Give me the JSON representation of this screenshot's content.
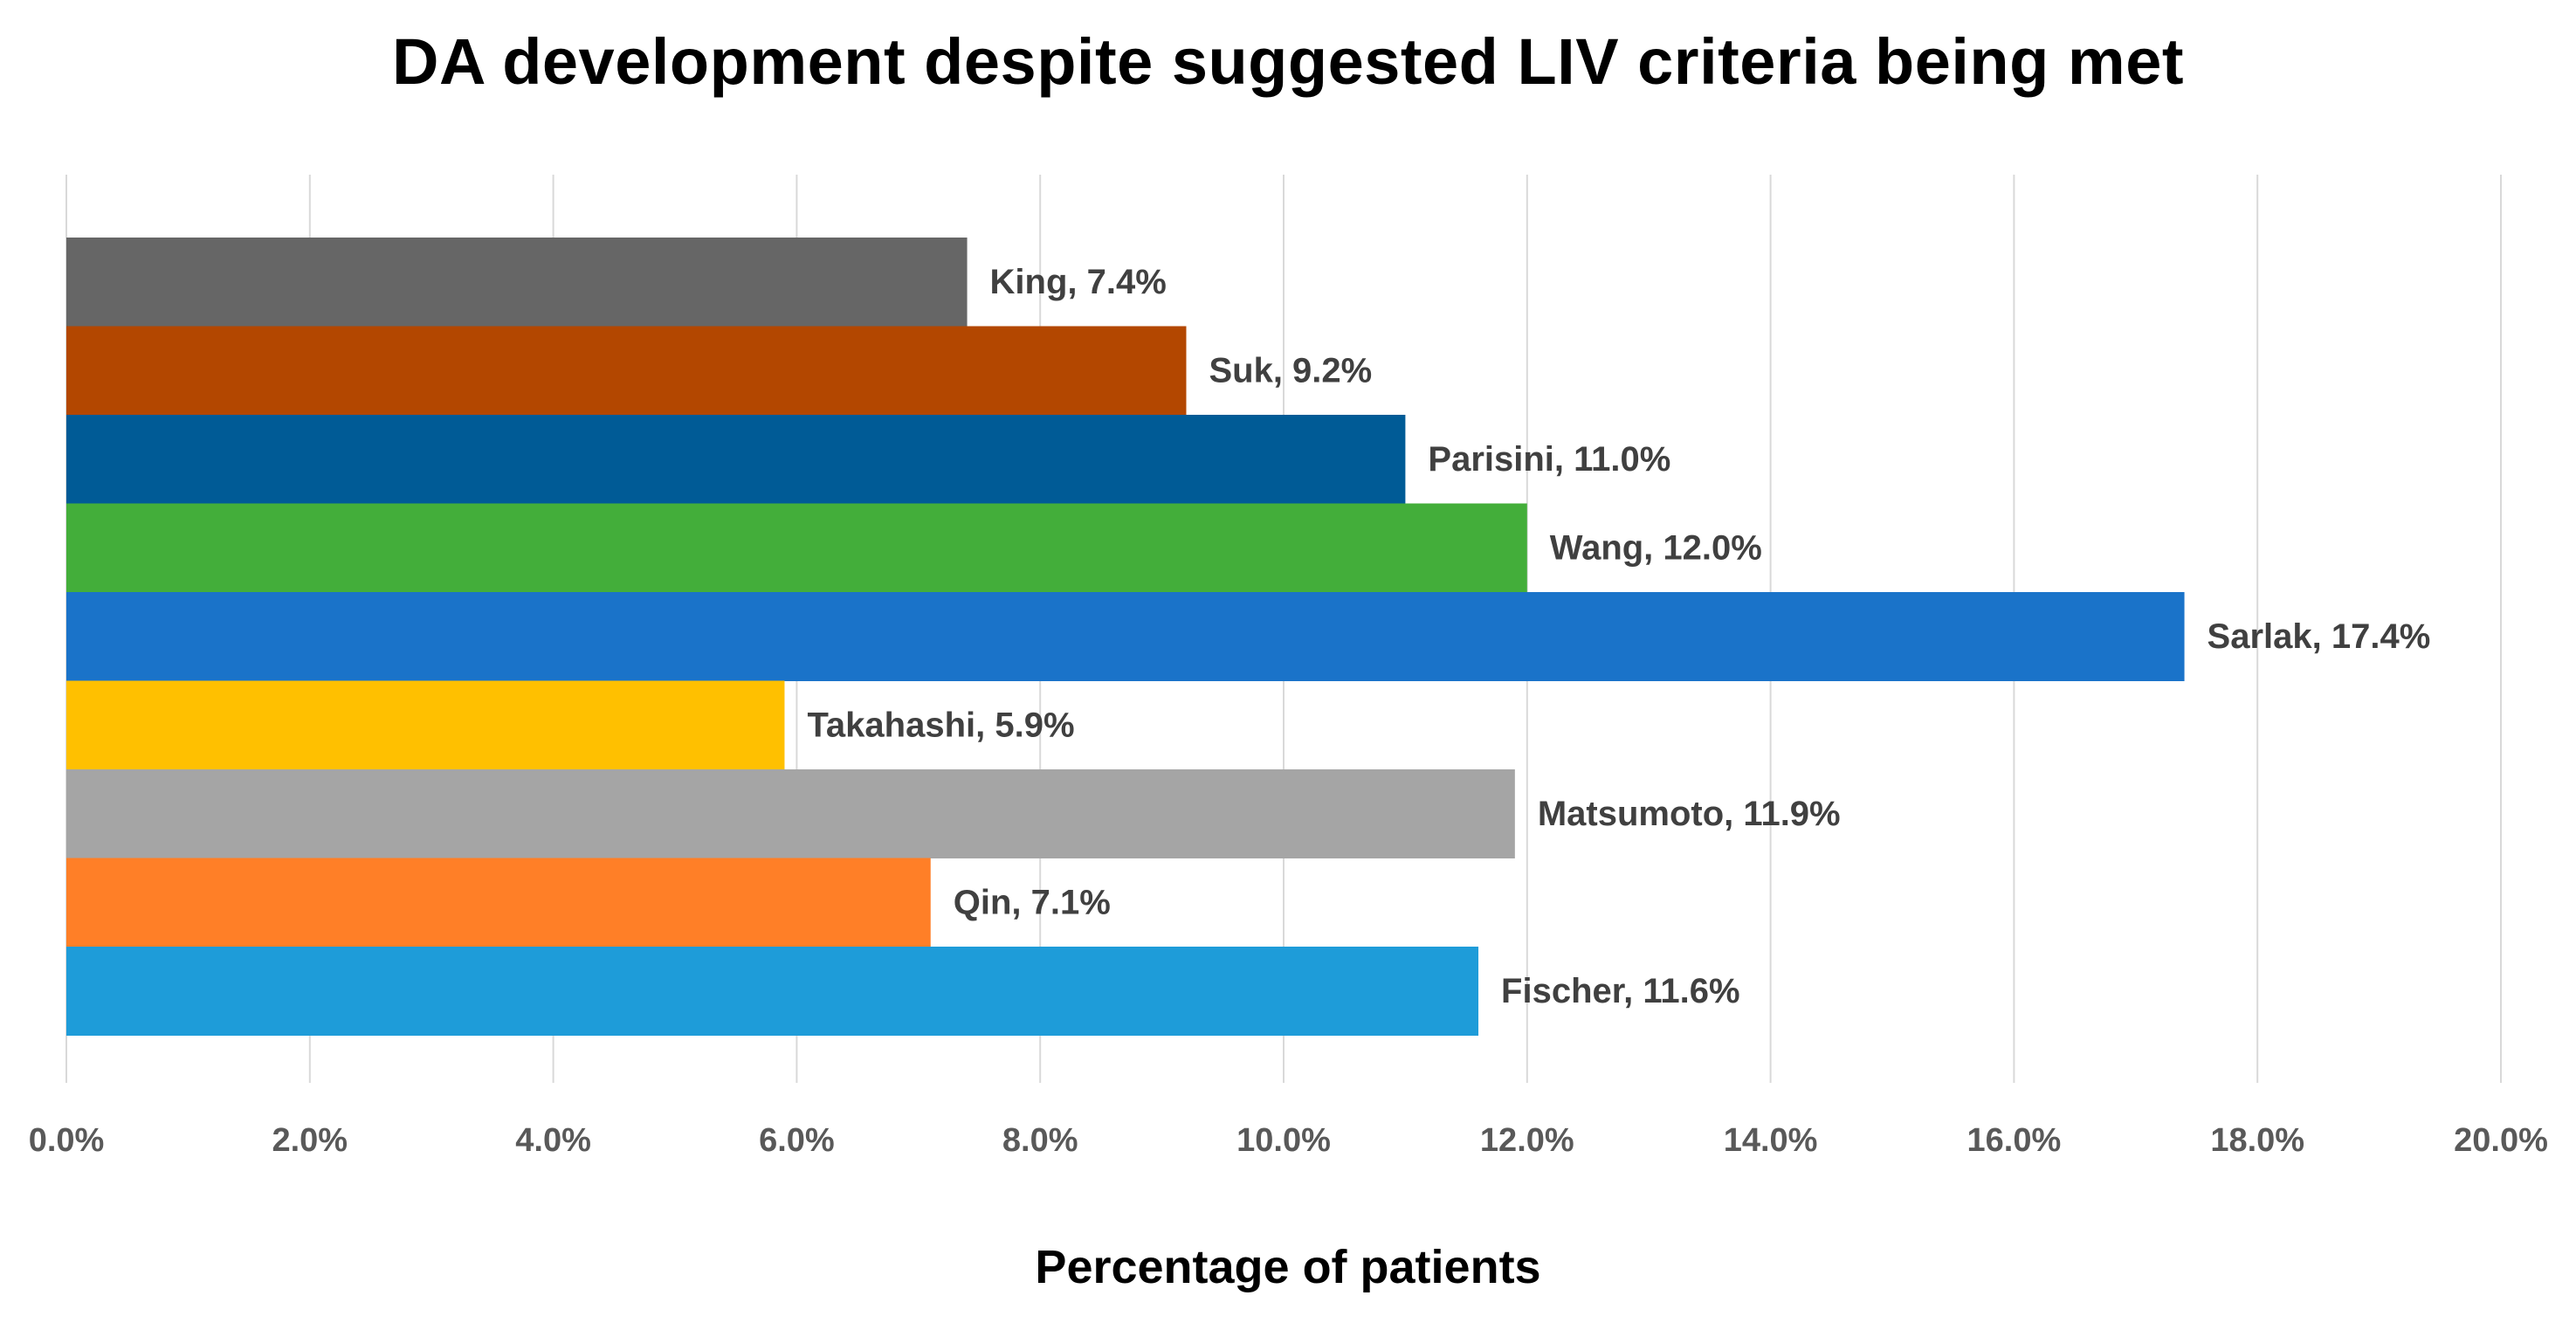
{
  "chart_data": {
    "type": "bar",
    "orientation": "horizontal",
    "title": "DA development despite suggested LIV criteria being met",
    "xlabel": "Percentage of patients",
    "ylabel": "",
    "xlim": [
      0,
      20
    ],
    "x_tick_values": [
      0,
      2,
      4,
      6,
      8,
      10,
      12,
      14,
      16,
      18,
      20
    ],
    "x_tick_labels": [
      "0.0%",
      "2.0%",
      "4.0%",
      "6.0%",
      "8.0%",
      "10.0%",
      "12.0%",
      "14.0%",
      "16.0%",
      "18.0%",
      "20.0%"
    ],
    "grid": true,
    "legend": "none",
    "bars": [
      {
        "name": "King",
        "value": 7.4,
        "label": "King, 7.4%",
        "color": "#666666"
      },
      {
        "name": "Suk",
        "value": 9.2,
        "label": "Suk, 9.2%",
        "color": "#B34700"
      },
      {
        "name": "Parisini",
        "value": 11.0,
        "label": "Parisini, 11.0%",
        "color": "#005B96"
      },
      {
        "name": "Wang",
        "value": 12.0,
        "label": "Wang, 12.0%",
        "color": "#43AE3A"
      },
      {
        "name": "Sarlak",
        "value": 17.4,
        "label": "Sarlak, 17.4%",
        "color": "#1A73C9"
      },
      {
        "name": "Takahashi",
        "value": 5.9,
        "label": "Takahashi, 5.9%",
        "color": "#FFC000"
      },
      {
        "name": "Matsumoto",
        "value": 11.9,
        "label": "Matsumoto, 11.9%",
        "color": "#A5A5A5"
      },
      {
        "name": "Qin",
        "value": 7.1,
        "label": "Qin, 7.1%",
        "color": "#FF7F27"
      },
      {
        "name": "Fischer",
        "value": 11.6,
        "label": "Fischer, 11.6%",
        "color": "#1E9CD9"
      }
    ]
  }
}
